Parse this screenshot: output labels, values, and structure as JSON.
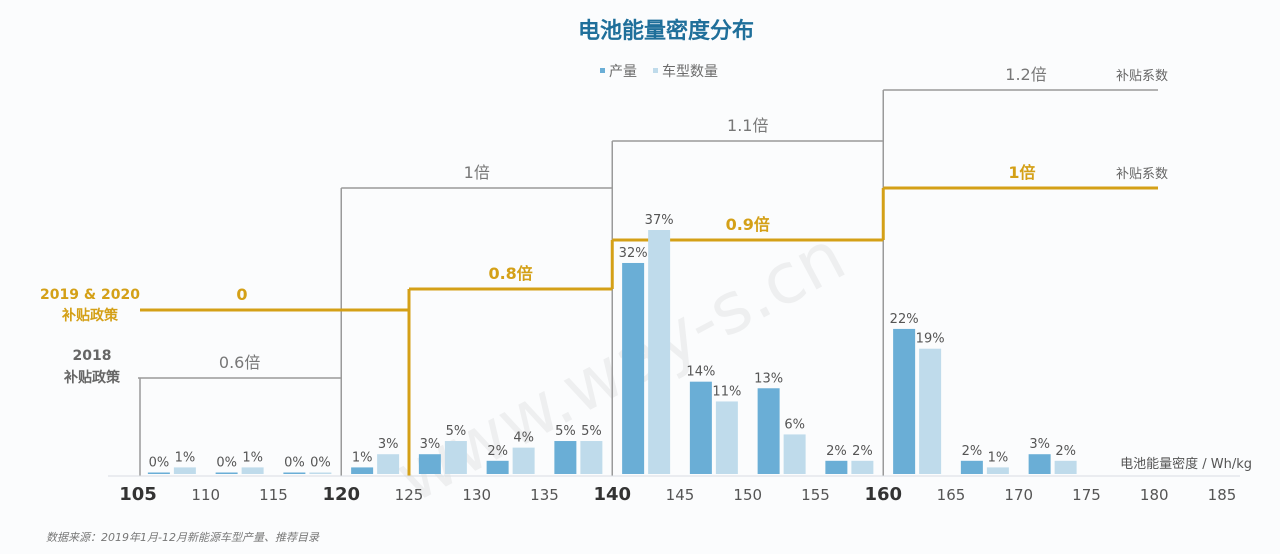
{
  "chart_data": {
    "type": "bar",
    "title": "电池能量密度分布",
    "xlabel": "电池能量密度 / Wh/kg",
    "ylabel": "",
    "ylim": [
      0,
      40
    ],
    "x_ticks": [
      105,
      110,
      115,
      120,
      125,
      130,
      135,
      140,
      145,
      150,
      155,
      160,
      165,
      170,
      175,
      180,
      185
    ],
    "major_ticks": [
      105,
      120,
      140,
      160
    ],
    "categories": [
      "105-110",
      "110-115",
      "115-120",
      "120-125",
      "125-130",
      "130-135",
      "135-140",
      "140-145",
      "145-150",
      "150-155",
      "155-160",
      "160-165",
      "165-170",
      "170-175"
    ],
    "series": [
      {
        "name": "产量",
        "color": "#6aaed6",
        "values": [
          0,
          0,
          0,
          1,
          3,
          2,
          5,
          32,
          14,
          13,
          2,
          22,
          2,
          3
        ]
      },
      {
        "name": "车型数量",
        "color": "#bfdbeb",
        "values": [
          1,
          1,
          0,
          3,
          5,
          4,
          5,
          37,
          11,
          6,
          2,
          19,
          1,
          2
        ]
      }
    ],
    "value_labels": [
      [
        "0%",
        "1%"
      ],
      [
        "0%",
        "1%"
      ],
      [
        "0%",
        "0%"
      ],
      [
        "1%",
        "3%"
      ],
      [
        "3%",
        "5%"
      ],
      [
        "2%",
        "4%"
      ],
      [
        "5%",
        "5%"
      ],
      [
        "32%",
        "37%"
      ],
      [
        "14%",
        "11%"
      ],
      [
        "13%",
        "6%"
      ],
      [
        "2%",
        "2%"
      ],
      [
        "22%",
        "19%"
      ],
      [
        "2%",
        "1%"
      ],
      [
        "3%",
        "2%"
      ]
    ],
    "legend_position": "top-center",
    "grid": false,
    "policy_2018": {
      "name_line1": "2018",
      "name_line2": "补贴政策",
      "color": "#9a9a9a",
      "steps": [
        {
          "from": 105,
          "to": 120,
          "label": "0.6倍"
        },
        {
          "from": 120,
          "to": 140,
          "label": "1倍"
        },
        {
          "from": 140,
          "to": 160,
          "label": "1.1倍"
        },
        {
          "from": 160,
          "to": 180,
          "label": "1.2倍"
        }
      ],
      "end_label": "补贴系数"
    },
    "policy_2019": {
      "name_line1": "2019 & 2020",
      "name_line2": "补贴政策",
      "color": "#d4a017",
      "steps": [
        {
          "from": 105,
          "to": 125,
          "label": "0"
        },
        {
          "from": 125,
          "to": 140,
          "label": "0.8倍"
        },
        {
          "from": 140,
          "to": 160,
          "label": "0.9倍"
        },
        {
          "from": 160,
          "to": 180,
          "label": "1倍"
        }
      ],
      "end_label": "补贴系数"
    },
    "source": "数据来源：2019年1月-12月新能源车型产量、推荐目录"
  },
  "watermark": "www.way-s.cn"
}
